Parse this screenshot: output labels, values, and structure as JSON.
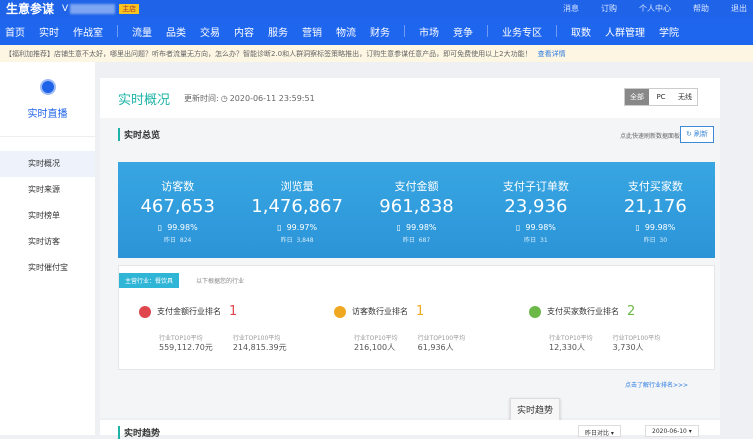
{
  "top": {
    "logo": "生意参谋",
    "shop_initial": "V",
    "badge": "主店",
    "links": [
      "消息",
      "订购",
      "个人中心",
      "帮助",
      "退出"
    ]
  },
  "nav": {
    "group1": [
      "首页",
      "实时",
      "作战室"
    ],
    "group2": [
      "流量",
      "品类",
      "交易",
      "内容",
      "服务",
      "营销",
      "物流",
      "财务"
    ],
    "group3": [
      "市场",
      "竞争"
    ],
    "group4": [
      "业务专区"
    ],
    "group5": [
      "取数",
      "人群管理",
      "学院"
    ]
  },
  "notice": {
    "text": "【福利加推荐】店铺生意不太好，哪里出问题？听布者流量无方向，怎么办？智能诊断2.0和人群洞察标签策略推出，订购生意参谋任意产品，即可免费使用以上2大功能！",
    "link": "查看详情"
  },
  "sidebar": {
    "title": "实时直播",
    "items": [
      "实时概况",
      "实时来源",
      "实时榜单",
      "实时访客",
      "实时催付宝"
    ],
    "selected": 0
  },
  "header": {
    "title": "实时概况",
    "update_label": "更新时间:",
    "update_time": "2020-06-11 23:59:51",
    "segments": [
      "全部",
      "PC",
      "无线"
    ],
    "active_segment": 0
  },
  "overview": {
    "title": "实时总览",
    "hint": "点此快速刷新数据面板",
    "refresh": "刷新",
    "metrics": [
      {
        "label": "访客数",
        "value": "467,653",
        "pct": "99.98%",
        "yesterday_label": "昨日",
        "yesterday": "824"
      },
      {
        "label": "浏览量",
        "value": "1,476,867",
        "pct": "99.97%",
        "yesterday_label": "昨日",
        "yesterday": "3,848"
      },
      {
        "label": "支付金额",
        "value": "961,838",
        "pct": "99.98%",
        "yesterday_label": "昨日",
        "yesterday": "687"
      },
      {
        "label": "支付子订单数",
        "value": "23,936",
        "pct": "99.98%",
        "yesterday_label": "昨日",
        "yesterday": "31"
      },
      {
        "label": "支付买家数",
        "value": "21,176",
        "pct": "99.98%",
        "yesterday_label": "昨日",
        "yesterday": "30"
      }
    ]
  },
  "ranking": {
    "tag": "主营行业：餐饮具",
    "tag_note": "以下根据您的行业",
    "more": "点击了解行业排名>>>",
    "items": [
      {
        "label": "支付金额行业排名",
        "rank": "1",
        "color": "#e0464e",
        "icon": "yen-icon",
        "k1": "行业TOP10平均",
        "v1": "559,112.70元",
        "k2": "行业TOP100平均",
        "v2": "214,815.39元"
      },
      {
        "label": "访客数行业排名",
        "rank": "1",
        "color": "#f0a820",
        "icon": "user-icon",
        "k1": "行业TOP10平均",
        "v1": "216,100人",
        "k2": "行业TOP100平均",
        "v2": "61,936人"
      },
      {
        "label": "支付买家数行业排名",
        "rank": "2",
        "color": "#6cb94a",
        "icon": "buyer-icon",
        "k1": "行业TOP10平均",
        "v1": "12,330人",
        "k2": "行业TOP100平均",
        "v2": "3,730人"
      }
    ]
  },
  "tooltip": "实时趋势",
  "trend": {
    "title": "实时趋势",
    "compare": "昨日对比",
    "date": "2020-06-10"
  }
}
